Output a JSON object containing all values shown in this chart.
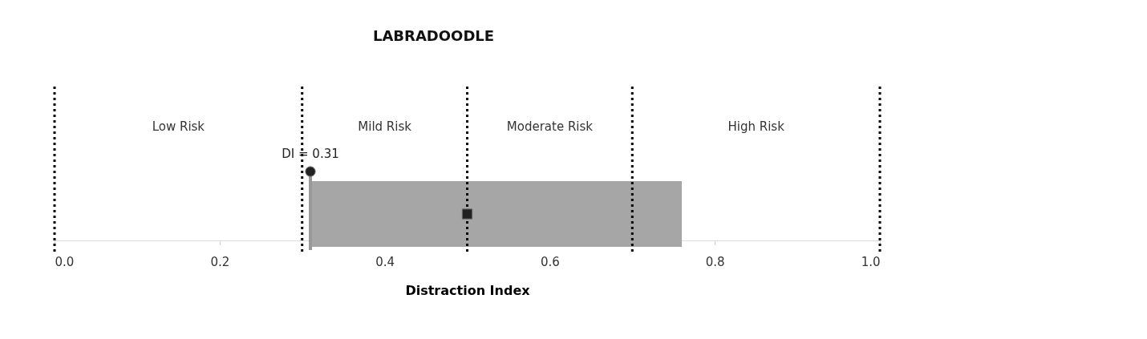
{
  "chart_data": {
    "type": "bar",
    "orientation": "horizontal",
    "title": "LABRADOODLE",
    "xlabel": "Distraction Index",
    "categories": [
      null
    ],
    "xlim": [
      0,
      1
    ],
    "xticks": [
      {
        "value": 0,
        "label": "0.0"
      },
      0.2,
      0.4,
      0.6,
      0.8,
      {
        "value": 1,
        "label": "1.0"
      }
    ],
    "series": [
      {
        "type": "bar",
        "color": "#a6a6a6",
        "base": [
          0.31
        ],
        "values": [
          0.45
        ]
      },
      {
        "type": "scatter",
        "color": "#222222",
        "marker": "square",
        "values": [
          0.5
        ]
      },
      {
        "type": "scatter",
        "color": "#222222",
        "marker": "circle",
        "values": [
          0.31
        ],
        "value_labels": [
          "DI = 0.31"
        ]
      }
    ],
    "ref_lines": [
      {
        "axis": "x",
        "value": 0,
        "color": "#000000",
        "line_style": "dotted"
      },
      {
        "axis": "x",
        "value": 0.3,
        "color": "#000000",
        "line_style": "dotted"
      },
      {
        "axis": "x",
        "value": 0.5,
        "color": "#000000",
        "line_style": "dotted"
      },
      {
        "axis": "x",
        "value": 0.7,
        "color": "#000000",
        "line_style": "dotted"
      },
      {
        "axis": "x",
        "value": 1,
        "color": "#000000",
        "line_style": "dotted"
      },
      {
        "axis": "x",
        "value": 0.31,
        "color": "#999999",
        "line_style": "solid"
      }
    ],
    "annotations": [
      "Low Risk",
      "Mild Risk",
      "Moderate Risk",
      "High Risk"
    ],
    "grid": false,
    "tick_labels": "x"
  }
}
